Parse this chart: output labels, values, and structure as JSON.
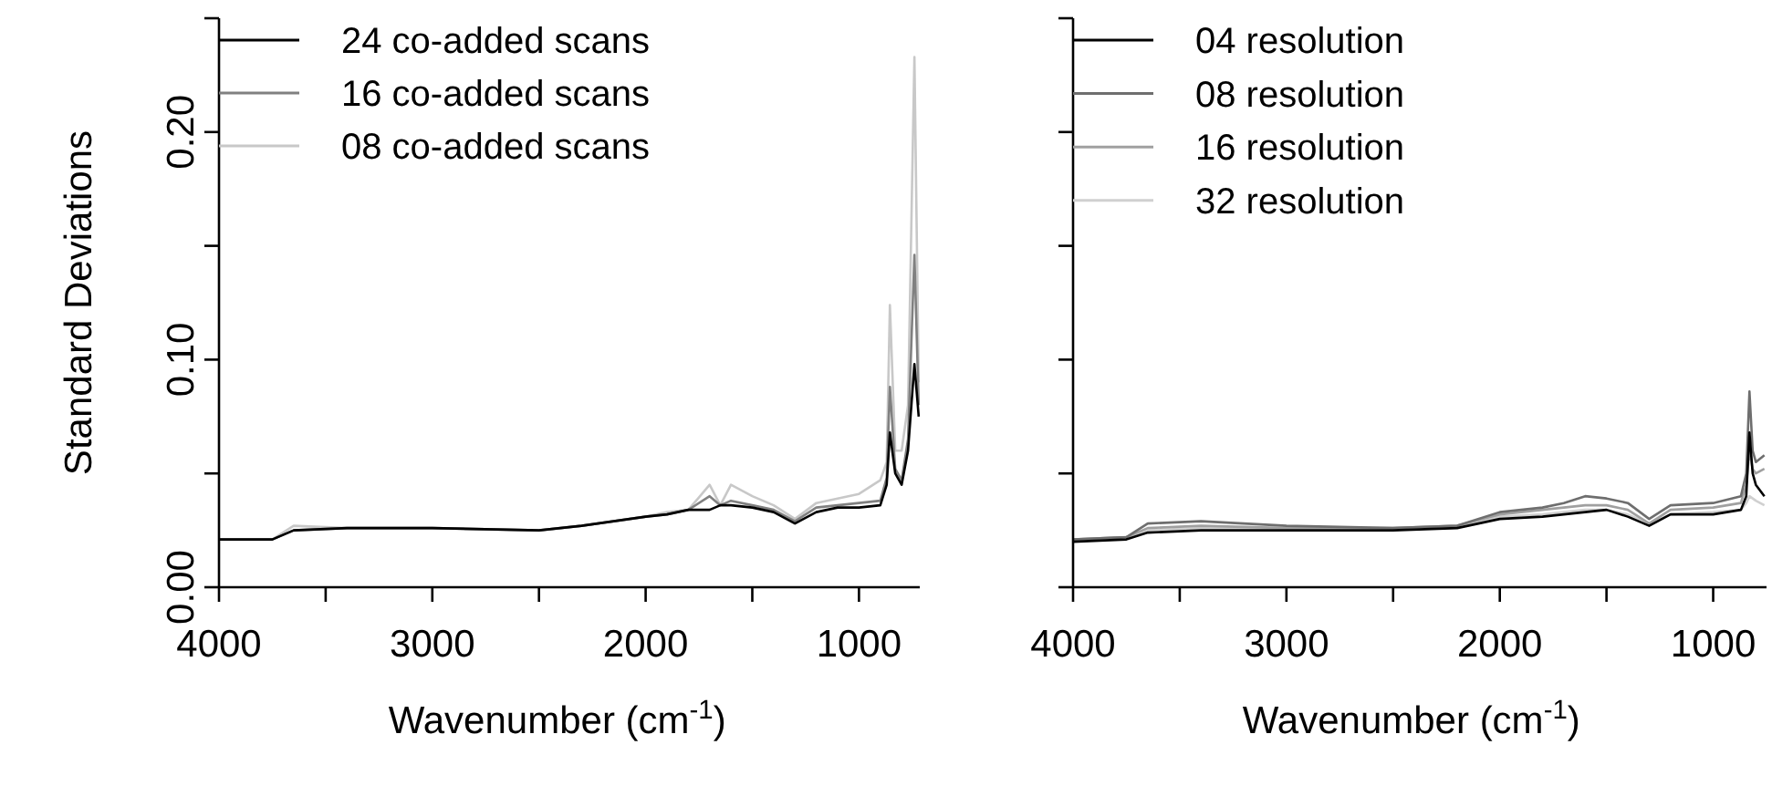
{
  "chart_data": [
    {
      "type": "line",
      "ylabel": "Standard Deviations",
      "xlabel": "Wavenumber (cm$^{-1}$)",
      "legend": "top left",
      "line_style": "solid",
      "xlim": [
        4000,
        715
      ],
      "xticks": [
        4000,
        {
          "value": 3500,
          "label": null
        },
        3000,
        {
          "value": 2500,
          "label": null
        },
        2000,
        {
          "value": 1500,
          "label": null
        },
        1000
      ],
      "ylim": [
        0,
        0.25
      ],
      "yticks": [
        {
          "value": 0,
          "label": "0.00"
        },
        {
          "value": 0.05,
          "label": null
        },
        {
          "value": 0.1,
          "label": "0.10"
        },
        {
          "value": 0.15,
          "label": null
        },
        {
          "value": 0.2,
          "label": "0.20"
        },
        {
          "value": 0.25,
          "label": null
        }
      ],
      "x": [
        4000,
        3750,
        3650,
        3400,
        3000,
        2500,
        2300,
        2000,
        1900,
        1800,
        1700,
        1650,
        1600,
        1500,
        1400,
        1300,
        1200,
        1100,
        1000,
        900,
        870,
        855,
        830,
        800,
        770,
        740,
        720
      ],
      "series": [
        {
          "name": "24 co-added scans",
          "color": "#000000",
          "values": [
            0.021,
            0.021,
            0.025,
            0.026,
            0.026,
            0.025,
            0.027,
            0.031,
            0.032,
            0.034,
            0.034,
            0.036,
            0.036,
            0.035,
            0.033,
            0.028,
            0.033,
            0.035,
            0.035,
            0.036,
            0.045,
            0.068,
            0.05,
            0.045,
            0.06,
            0.098,
            0.075
          ]
        },
        {
          "name": "16 co-added scans",
          "color": "#808080",
          "values": [
            0.021,
            0.021,
            0.025,
            0.026,
            0.026,
            0.025,
            0.027,
            0.031,
            0.032,
            0.034,
            0.04,
            0.036,
            0.038,
            0.036,
            0.034,
            0.029,
            0.035,
            0.036,
            0.037,
            0.038,
            0.048,
            0.088,
            0.052,
            0.047,
            0.065,
            0.146,
            0.08
          ]
        },
        {
          "name": "08 co-added scans",
          "color": "#c8c8c8",
          "values": [
            0.021,
            0.021,
            0.027,
            0.026,
            0.026,
            0.025,
            0.027,
            0.031,
            0.033,
            0.034,
            0.045,
            0.036,
            0.045,
            0.04,
            0.036,
            0.03,
            0.037,
            0.039,
            0.041,
            0.047,
            0.055,
            0.124,
            0.06,
            0.06,
            0.08,
            0.233,
            0.09
          ]
        }
      ]
    },
    {
      "type": "line",
      "xlabel": "Wavenumber (cm$^{-1}$)",
      "legend": "top left",
      "line_style": "solid",
      "tick_labels": "x",
      "xlim": [
        4000,
        750
      ],
      "xticks": [
        4000,
        {
          "value": 3500,
          "label": null
        },
        3000,
        {
          "value": 2500,
          "label": null
        },
        2000,
        {
          "value": 1500,
          "label": null
        },
        1000
      ],
      "ylim": [
        0,
        0.25
      ],
      "yticks": [
        {
          "value": 0,
          "label": null
        },
        {
          "value": 0.05,
          "label": null
        },
        {
          "value": 0.1,
          "label": null
        },
        {
          "value": 0.15,
          "label": null
        },
        {
          "value": 0.2,
          "label": null
        },
        {
          "value": 0.25,
          "label": null
        }
      ],
      "x": [
        4000,
        3750,
        3650,
        3400,
        3000,
        2500,
        2200,
        2000,
        1800,
        1700,
        1600,
        1500,
        1400,
        1300,
        1200,
        1000,
        870,
        845,
        830,
        815,
        800,
        760
      ],
      "series": [
        {
          "name": "04 resolution",
          "color": "#000000",
          "values": [
            0.02,
            0.021,
            0.024,
            0.025,
            0.025,
            0.025,
            0.026,
            0.03,
            0.031,
            0.032,
            0.033,
            0.034,
            0.031,
            0.027,
            0.032,
            0.032,
            0.034,
            0.04,
            0.068,
            0.05,
            0.045,
            0.04
          ]
        },
        {
          "name": "08 resolution",
          "color": "#6e6e6e",
          "values": [
            0.021,
            0.022,
            0.028,
            0.029,
            0.027,
            0.026,
            0.027,
            0.033,
            0.035,
            0.037,
            0.04,
            0.039,
            0.037,
            0.03,
            0.036,
            0.037,
            0.04,
            0.05,
            0.086,
            0.06,
            0.055,
            0.058
          ]
        },
        {
          "name": "16 resolution",
          "color": "#a0a0a0",
          "values": [
            0.021,
            0.022,
            0.026,
            0.027,
            0.026,
            0.026,
            0.027,
            0.032,
            0.034,
            0.035,
            0.036,
            0.036,
            0.034,
            0.028,
            0.034,
            0.035,
            0.037,
            0.045,
            0.06,
            0.052,
            0.05,
            0.052
          ]
        },
        {
          "name": "32 resolution",
          "color": "#d0d0d0",
          "values": [
            0.021,
            0.022,
            0.025,
            0.026,
            0.026,
            0.026,
            0.027,
            0.031,
            0.032,
            0.033,
            0.034,
            0.034,
            0.032,
            0.028,
            0.032,
            0.033,
            0.034,
            0.037,
            0.04,
            0.039,
            0.038,
            0.036
          ]
        }
      ]
    }
  ]
}
